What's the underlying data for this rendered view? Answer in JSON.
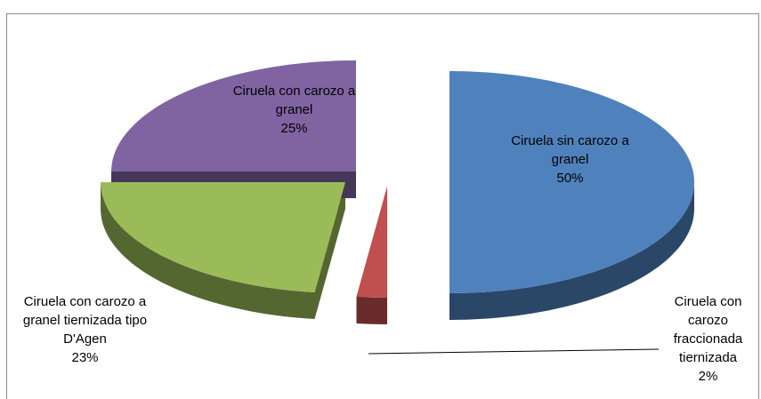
{
  "chart_data": {
    "type": "pie",
    "categories": [
      "Ciruela sin carozo a granel",
      "Ciruela con carozo fraccionada tiernizada",
      "Ciruela con carozo a granel tiernizada tipo D'Agen",
      "Ciruela con carozo a granel"
    ],
    "values": [
      50,
      2,
      23,
      25
    ],
    "value_labels": [
      "50%",
      "2%",
      "23%",
      "25%"
    ],
    "colors": [
      "#4f81bd",
      "#c0504d",
      "#9bbb59",
      "#8064a2"
    ]
  }
}
